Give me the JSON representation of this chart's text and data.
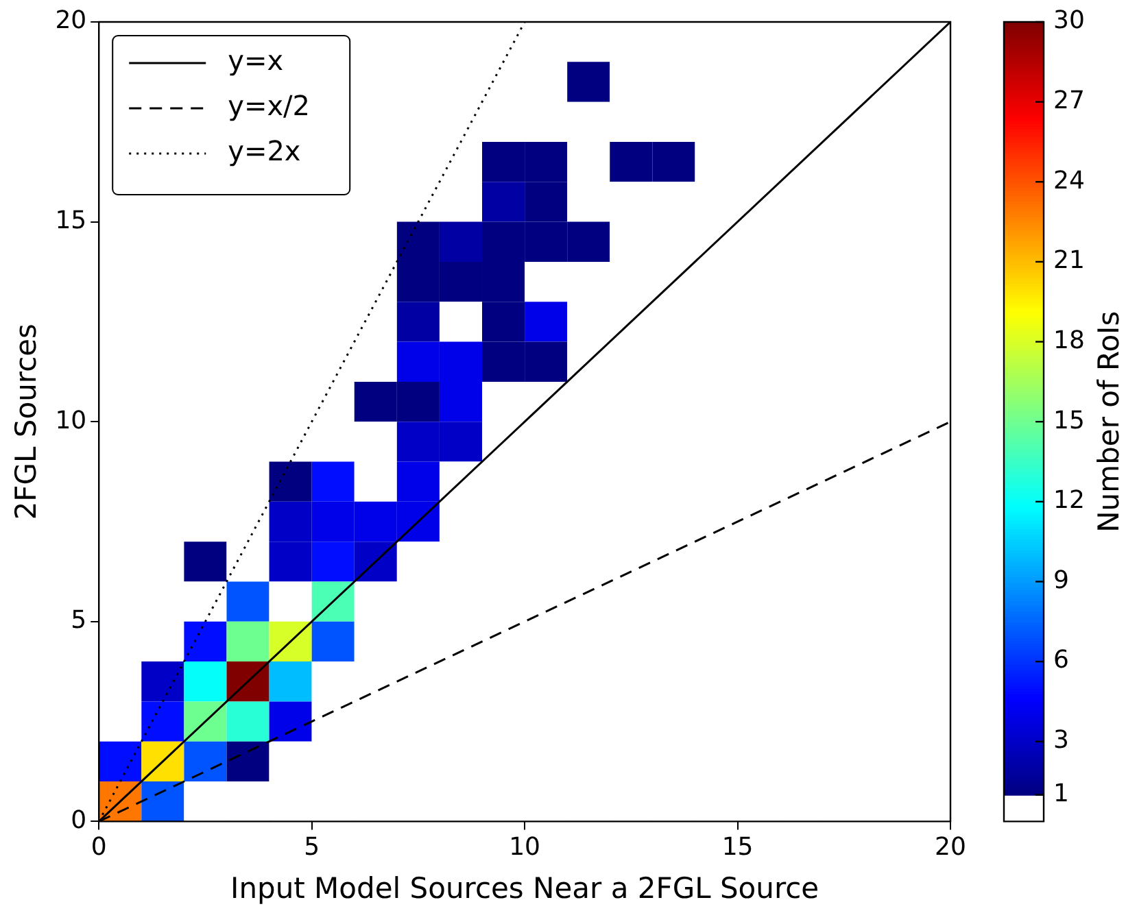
{
  "chart_data": {
    "type": "heatmap",
    "xlabel": "Input Model Sources Near a 2FGL Source",
    "ylabel": "2FGL Sources",
    "clabel": "Number of RoIs",
    "xlim": [
      0,
      20
    ],
    "ylim": [
      0,
      20
    ],
    "xticks": [
      0,
      5,
      10,
      15,
      20
    ],
    "yticks": [
      0,
      5,
      10,
      15,
      20
    ],
    "clim": [
      0,
      30
    ],
    "cticks": [
      1,
      3,
      6,
      9,
      12,
      15,
      18,
      21,
      24,
      27,
      30
    ],
    "cells": [
      [
        0,
        0,
        0,
        0,
        0,
        0,
        0,
        0,
        0,
        0,
        0,
        0,
        0,
        0,
        0,
        0,
        0,
        0,
        0,
        0
      ],
      [
        0,
        0,
        0,
        0,
        0,
        0,
        0,
        0,
        0,
        0,
        0,
        1,
        0,
        0,
        0,
        0,
        0,
        0,
        0,
        0
      ],
      [
        0,
        0,
        0,
        0,
        0,
        0,
        0,
        0,
        0,
        0,
        0,
        0,
        0,
        0,
        0,
        0,
        0,
        0,
        0,
        0
      ],
      [
        0,
        0,
        0,
        0,
        0,
        0,
        0,
        0,
        0,
        1,
        1,
        0,
        1,
        1,
        0,
        0,
        0,
        0,
        0,
        0
      ],
      [
        0,
        0,
        0,
        0,
        0,
        0,
        0,
        0,
        0,
        2,
        1,
        0,
        0,
        0,
        0,
        0,
        0,
        0,
        0,
        0
      ],
      [
        0,
        0,
        0,
        0,
        0,
        0,
        0,
        1,
        2,
        1,
        1,
        1,
        0,
        0,
        0,
        0,
        0,
        0,
        0,
        0
      ],
      [
        0,
        0,
        0,
        0,
        0,
        0,
        0,
        1,
        1,
        1,
        0,
        0,
        0,
        0,
        0,
        0,
        0,
        0,
        0,
        0
      ],
      [
        0,
        0,
        0,
        0,
        0,
        0,
        0,
        2,
        0,
        1,
        4,
        0,
        0,
        0,
        0,
        0,
        0,
        0,
        0,
        0
      ],
      [
        0,
        0,
        0,
        0,
        0,
        0,
        0,
        4,
        4,
        1,
        1,
        0,
        0,
        0,
        0,
        0,
        0,
        0,
        0,
        0
      ],
      [
        0,
        0,
        0,
        0,
        0,
        0,
        1,
        1,
        4,
        0,
        0,
        0,
        0,
        0,
        0,
        0,
        0,
        0,
        0,
        0
      ],
      [
        0,
        0,
        0,
        0,
        0,
        0,
        0,
        3,
        3,
        0,
        0,
        0,
        0,
        0,
        0,
        0,
        0,
        0,
        0,
        0
      ],
      [
        0,
        0,
        0,
        0,
        1,
        5,
        0,
        4,
        0,
        0,
        0,
        0,
        0,
        0,
        0,
        0,
        0,
        0,
        0,
        0
      ],
      [
        0,
        0,
        0,
        0,
        3,
        4,
        4,
        4,
        0,
        0,
        0,
        0,
        0,
        0,
        0,
        0,
        0,
        0,
        0,
        0
      ],
      [
        0,
        0,
        1,
        0,
        3,
        5,
        3,
        0,
        0,
        0,
        0,
        0,
        0,
        0,
        0,
        0,
        0,
        0,
        0,
        0
      ],
      [
        0,
        0,
        0,
        7,
        0,
        14,
        0,
        0,
        0,
        0,
        0,
        0,
        0,
        0,
        0,
        0,
        0,
        0,
        0,
        0
      ],
      [
        0,
        0,
        5,
        15,
        18,
        7,
        0,
        0,
        0,
        0,
        0,
        0,
        0,
        0,
        0,
        0,
        0,
        0,
        0,
        0
      ],
      [
        0,
        3,
        12,
        30,
        10,
        0,
        0,
        0,
        0,
        0,
        0,
        0,
        0,
        0,
        0,
        0,
        0,
        0,
        0,
        0
      ],
      [
        0,
        5,
        15,
        13,
        4,
        0,
        0,
        0,
        0,
        0,
        0,
        0,
        0,
        0,
        0,
        0,
        0,
        0,
        0,
        0
      ],
      [
        5,
        20,
        7,
        1,
        0,
        0,
        0,
        0,
        0,
        0,
        0,
        0,
        0,
        0,
        0,
        0,
        0,
        0,
        0,
        0
      ],
      [
        23,
        7,
        0,
        0,
        0,
        0,
        0,
        0,
        0,
        0,
        0,
        0,
        0,
        0,
        0,
        0,
        0,
        0,
        0,
        0
      ]
    ],
    "series": [
      {
        "type": "line",
        "name": "y=x",
        "color": "#000000",
        "line_style": "solid",
        "x": [
          0,
          20
        ],
        "values": [
          0,
          20
        ]
      },
      {
        "type": "line",
        "name": "y=x/2",
        "color": "#000000",
        "line_style": "dashed",
        "x": [
          0,
          20
        ],
        "values": [
          0,
          10
        ]
      },
      {
        "type": "line",
        "name": "y=2x",
        "color": "#000000",
        "line_style": "dotted",
        "x": [
          0,
          10
        ],
        "values": [
          0,
          20
        ]
      }
    ],
    "legend": "top left",
    "grid": false
  }
}
